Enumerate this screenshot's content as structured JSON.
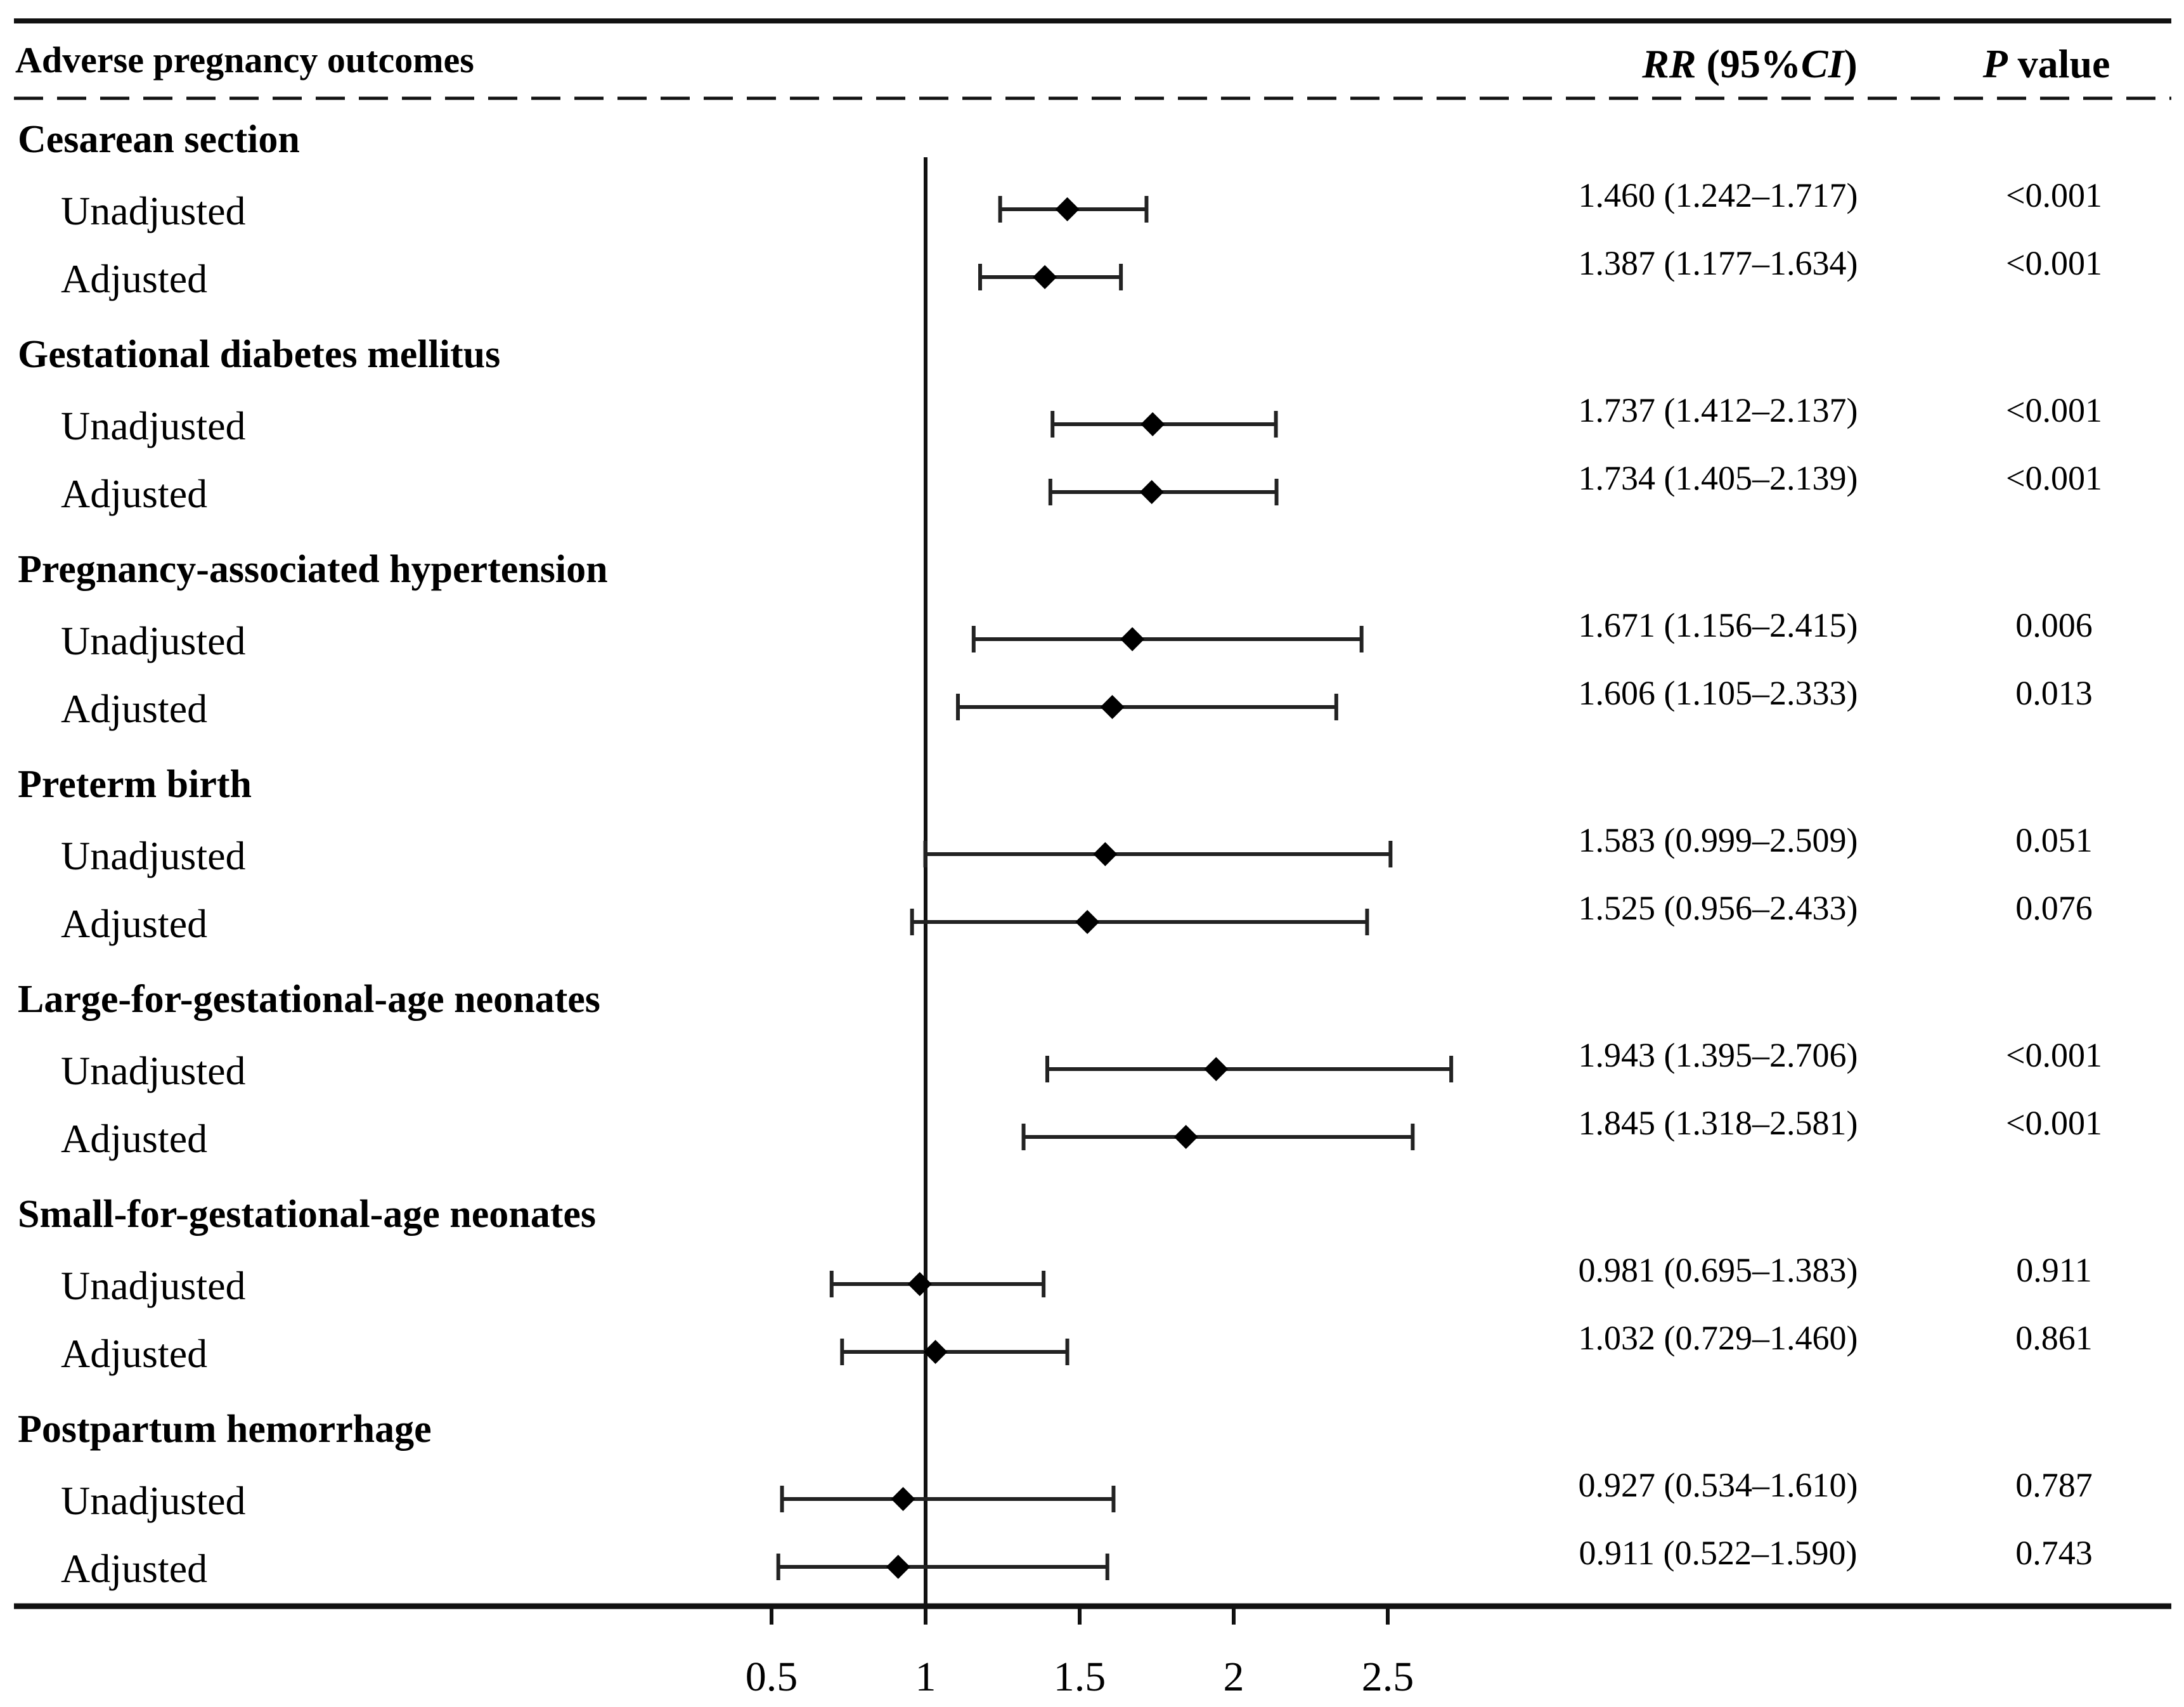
{
  "header": {
    "outcome_col": "Adverse pregnancy outcomes",
    "rr_col_italic_1": "RR",
    "rr_col_mid": " (95%",
    "rr_col_italic_2": "CI",
    "rr_col_end": ")",
    "p_col_italic": "P",
    "p_col_rest": " value"
  },
  "chart_data": {
    "type": "forest",
    "reference_line": 1,
    "xlim": [
      0.5,
      2.5
    ],
    "xticks": [
      0.5,
      1,
      1.5,
      2,
      2.5
    ],
    "xtick_labels": [
      "0.5",
      "1",
      "1.5",
      "2",
      "2.5"
    ],
    "groups": [
      {
        "name": "Cesarean section",
        "rows": [
          {
            "label": "Unadjusted",
            "rr": 1.46,
            "lo": 1.242,
            "hi": 1.717,
            "rr_text": "1.460 (1.242–1.717)",
            "p_text": "<0.001"
          },
          {
            "label": "Adjusted",
            "rr": 1.387,
            "lo": 1.177,
            "hi": 1.634,
            "rr_text": "1.387 (1.177–1.634)",
            "p_text": "<0.001"
          }
        ]
      },
      {
        "name": "Gestational diabetes mellitus",
        "rows": [
          {
            "label": "Unadjusted",
            "rr": 1.737,
            "lo": 1.412,
            "hi": 2.137,
            "rr_text": "1.737 (1.412–2.137)",
            "p_text": "<0.001"
          },
          {
            "label": "Adjusted",
            "rr": 1.734,
            "lo": 1.405,
            "hi": 2.139,
            "rr_text": "1.734 (1.405–2.139)",
            "p_text": "<0.001"
          }
        ]
      },
      {
        "name": "Pregnancy-associated hypertension",
        "rows": [
          {
            "label": "Unadjusted",
            "rr": 1.671,
            "lo": 1.156,
            "hi": 2.415,
            "rr_text": "1.671 (1.156–2.415)",
            "p_text": "0.006"
          },
          {
            "label": "Adjusted",
            "rr": 1.606,
            "lo": 1.105,
            "hi": 2.333,
            "rr_text": "1.606 (1.105–2.333)",
            "p_text": "0.013"
          }
        ]
      },
      {
        "name": "Preterm birth",
        "rows": [
          {
            "label": "Unadjusted",
            "rr": 1.583,
            "lo": 0.999,
            "hi": 2.509,
            "rr_text": "1.583 (0.999–2.509)",
            "p_text": "0.051"
          },
          {
            "label": "Adjusted",
            "rr": 1.525,
            "lo": 0.956,
            "hi": 2.433,
            "rr_text": "1.525 (0.956–2.433)",
            "p_text": "0.076"
          }
        ]
      },
      {
        "name": "Large-for-gestational-age neonates",
        "rows": [
          {
            "label": "Unadjusted",
            "rr": 1.943,
            "lo": 1.395,
            "hi": 2.706,
            "rr_text": "1.943 (1.395–2.706)",
            "p_text": "<0.001"
          },
          {
            "label": "Adjusted",
            "rr": 1.845,
            "lo": 1.318,
            "hi": 2.581,
            "rr_text": "1.845 (1.318–2.581)",
            "p_text": "<0.001"
          }
        ]
      },
      {
        "name": "Small-for-gestational-age neonates",
        "rows": [
          {
            "label": "Unadjusted",
            "rr": 0.981,
            "lo": 0.695,
            "hi": 1.383,
            "rr_text": "0.981 (0.695–1.383)",
            "p_text": "0.911"
          },
          {
            "label": "Adjusted",
            "rr": 1.032,
            "lo": 0.729,
            "hi": 1.46,
            "rr_text": "1.032 (0.729–1.460)",
            "p_text": "0.861"
          }
        ]
      },
      {
        "name": "Postpartum hemorrhage",
        "rows": [
          {
            "label": "Unadjusted",
            "rr": 0.927,
            "lo": 0.534,
            "hi": 1.61,
            "rr_text": "0.927 (0.534–1.610)",
            "p_text": "0.787"
          },
          {
            "label": "Adjusted",
            "rr": 0.911,
            "lo": 0.522,
            "hi": 1.59,
            "rr_text": "0.911 (0.522–1.590)",
            "p_text": "0.743"
          }
        ]
      }
    ]
  }
}
